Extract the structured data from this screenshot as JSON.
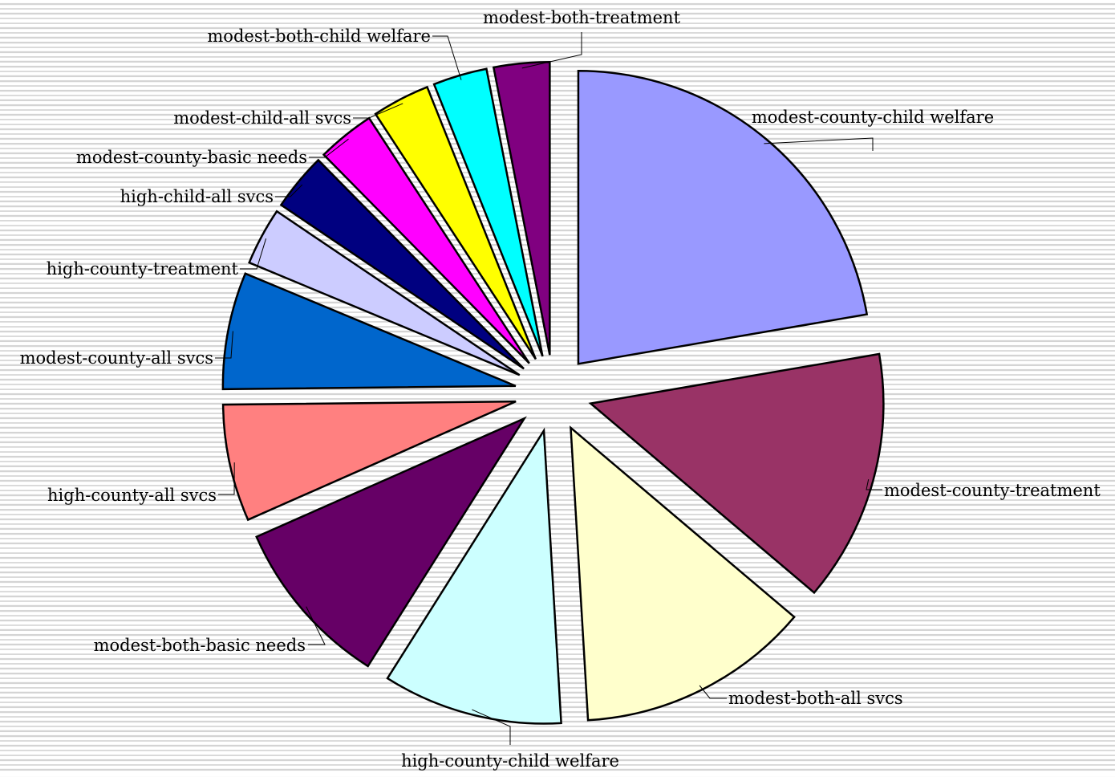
{
  "chart_data": {
    "type": "pie",
    "title": "",
    "exploded": true,
    "legend": "none",
    "data_labels": "category-names-with-leader-lines",
    "slices": [
      {
        "label": "modest-county-child welfare",
        "value": 22.5,
        "color": "#9999ff"
      },
      {
        "label": "modest-county-treatment",
        "value": 14.0,
        "color": "#993366"
      },
      {
        "label": "modest-both-all svcs",
        "value": 13.0,
        "color": "#ffffcc"
      },
      {
        "label": "high-county-child welfare",
        "value": 10.0,
        "color": "#ccffff"
      },
      {
        "label": "modest-both-basic needs",
        "value": 9.5,
        "color": "#660066"
      },
      {
        "label": "high-county-all svcs",
        "value": 6.5,
        "color": "#ff8080"
      },
      {
        "label": "modest-county-all svcs",
        "value": 6.5,
        "color": "#0066cc"
      },
      {
        "label": "high-county-treatment",
        "value": 3.2,
        "color": "#ccccff"
      },
      {
        "label": "high-child-all svcs",
        "value": 3.2,
        "color": "#000080"
      },
      {
        "label": "modest-county-basic needs",
        "value": 3.2,
        "color": "#ff00ff"
      },
      {
        "label": "modest-child-all svcs",
        "value": 3.2,
        "color": "#ffff00"
      },
      {
        "label": "modest-both-child welfare",
        "value": 3.0,
        "color": "#00ffff"
      },
      {
        "label": "modest-both-treatment",
        "value": 3.1,
        "color": "#800080"
      }
    ]
  }
}
